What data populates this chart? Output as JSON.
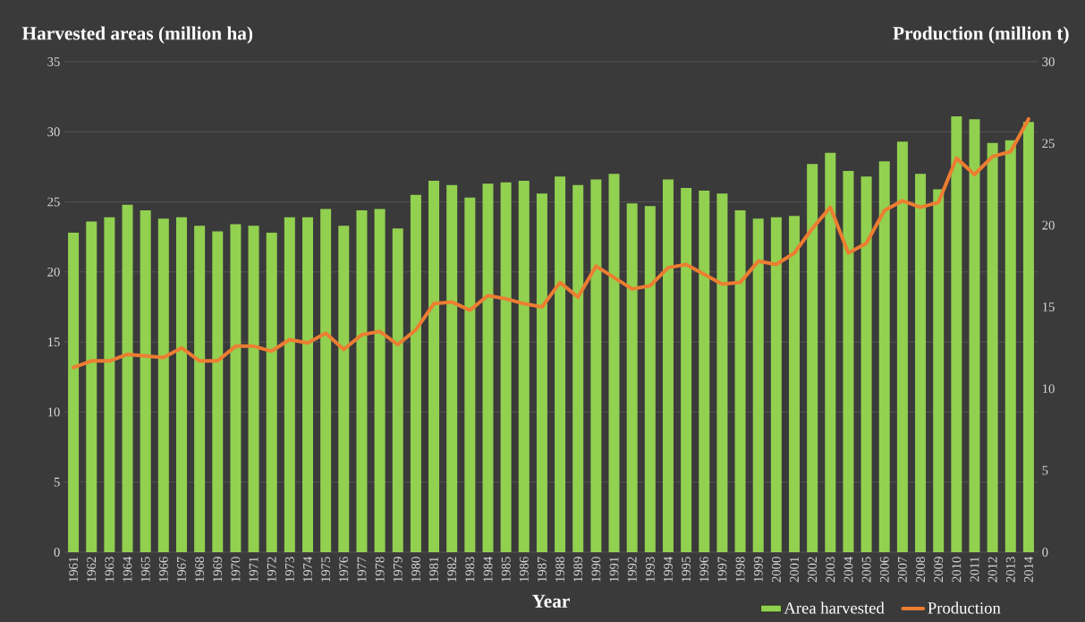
{
  "chart_data": {
    "type": "bar",
    "xlabel": "Year",
    "ylabel": "Harvested areas (million ha)",
    "y2label": "Production (million t)",
    "categories": [
      "1961",
      "1962",
      "1963",
      "1964",
      "1965",
      "1966",
      "1967",
      "1968",
      "1969",
      "1970",
      "1971",
      "1972",
      "1973",
      "1974",
      "1975",
      "1976",
      "1977",
      "1978",
      "1979",
      "1980",
      "1981",
      "1982",
      "1983",
      "1984",
      "1985",
      "1986",
      "1987",
      "1988",
      "1989",
      "1990",
      "1991",
      "1992",
      "1993",
      "1994",
      "1995",
      "1996",
      "1997",
      "1998",
      "1999",
      "2000",
      "2001",
      "2002",
      "2003",
      "2004",
      "2005",
      "2006",
      "2007",
      "2008",
      "2009",
      "2010",
      "2011",
      "2012",
      "2013",
      "2014"
    ],
    "series": [
      {
        "name": "Area harvested",
        "color": "#92d050",
        "values": [
          22.8,
          23.6,
          23.9,
          24.8,
          24.4,
          23.8,
          23.9,
          23.3,
          22.9,
          23.4,
          23.3,
          22.8,
          23.9,
          23.9,
          24.5,
          23.3,
          24.4,
          24.5,
          23.1,
          25.5,
          26.5,
          26.2,
          25.3,
          26.3,
          26.4,
          26.5,
          25.6,
          26.8,
          26.2,
          26.6,
          27.0,
          24.9,
          24.7,
          26.6,
          26.0,
          25.8,
          25.6,
          24.4,
          23.8,
          23.9,
          24.0,
          27.7,
          28.5,
          27.2,
          26.8,
          27.9,
          29.3,
          27.0,
          25.9,
          31.1,
          30.9,
          29.2,
          29.4,
          30.7
        ]
      },
      {
        "name": "Production",
        "type": "line",
        "axis": "y2",
        "color": "#ed7d31",
        "values": [
          11.3,
          11.7,
          11.7,
          12.1,
          12.0,
          11.9,
          12.5,
          11.7,
          11.7,
          12.6,
          12.6,
          12.3,
          13.0,
          12.8,
          13.4,
          12.4,
          13.3,
          13.5,
          12.7,
          13.6,
          15.2,
          15.3,
          14.8,
          15.7,
          15.5,
          15.2,
          15.0,
          16.5,
          15.6,
          17.5,
          16.8,
          16.1,
          16.3,
          17.4,
          17.6,
          17.0,
          16.4,
          16.5,
          17.8,
          17.6,
          18.3,
          19.8,
          21.1,
          18.3,
          18.9,
          20.9,
          21.5,
          21.1,
          21.4,
          24.1,
          23.1,
          24.2,
          24.5,
          26.5
        ]
      }
    ],
    "ylim": [
      0,
      35
    ],
    "yticks": [
      0,
      5,
      10,
      15,
      20,
      25,
      30,
      35
    ],
    "y2lim": [
      0,
      30
    ],
    "y2ticks": [
      0,
      5,
      10,
      15,
      20,
      25,
      30
    ],
    "grid": "y",
    "legend": "bottom"
  }
}
